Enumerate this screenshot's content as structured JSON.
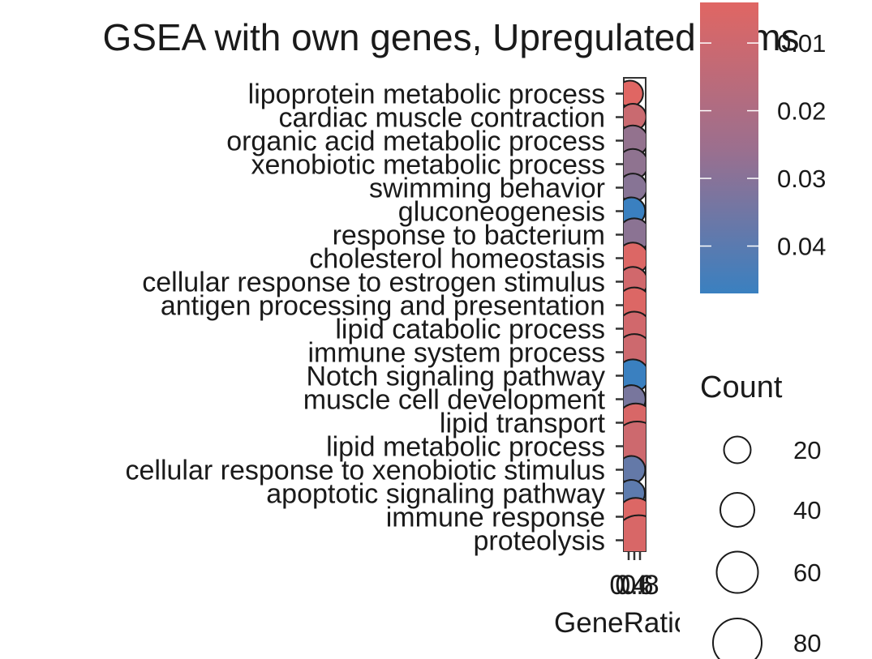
{
  "chart_data": {
    "type": "scatter",
    "title": "GSEA with own genes, Upregulated terms",
    "xlabel": "GeneRatio",
    "ylabel": "",
    "x_tick_labels": [
      "0.4",
      "0.6",
      "0.8"
    ],
    "categories": [
      "lipoprotein metabolic process",
      "cardiac muscle contraction",
      "organic acid metabolic process",
      "xenobiotic metabolic process",
      "swimming behavior",
      "gluconeogenesis",
      "response to bacterium",
      "cholesterol homeostasis",
      "cellular response to estrogen stimulus",
      "antigen processing and presentation",
      "lipid catabolic process",
      "immune system process",
      "Notch signaling pathway",
      "muscle cell development",
      "lipid transport",
      "lipid metabolic process",
      "cellular response to xenobiotic stimulus",
      "apoptotic signaling pathway",
      "immune response",
      "proteolysis"
    ],
    "points": [
      {
        "term": "lipoprotein metabolic process",
        "gene_ratio": 0.45,
        "p_adjust": 0.004,
        "count": 18
      },
      {
        "term": "cardiac muscle contraction",
        "gene_ratio": 0.55,
        "p_adjust": 0.01,
        "count": 20
      },
      {
        "term": "organic acid metabolic process",
        "gene_ratio": 0.55,
        "p_adjust": 0.024,
        "count": 30
      },
      {
        "term": "xenobiotic metabolic process",
        "gene_ratio": 0.55,
        "p_adjust": 0.025,
        "count": 30
      },
      {
        "term": "swimming behavior",
        "gene_ratio": 0.55,
        "p_adjust": 0.027,
        "count": 24
      },
      {
        "term": "gluconeogenesis",
        "gene_ratio": 0.5,
        "p_adjust": 0.047,
        "count": 22
      },
      {
        "term": "response to bacterium",
        "gene_ratio": 0.6,
        "p_adjust": 0.026,
        "count": 36
      },
      {
        "term": "cholesterol homeostasis",
        "gene_ratio": 0.55,
        "p_adjust": 0.005,
        "count": 32
      },
      {
        "term": "cellular response to estrogen stimulus",
        "gene_ratio": 0.55,
        "p_adjust": 0.008,
        "count": 28
      },
      {
        "term": "antigen processing and presentation",
        "gene_ratio": 0.6,
        "p_adjust": 0.005,
        "count": 44
      },
      {
        "term": "lipid catabolic process",
        "gene_ratio": 0.6,
        "p_adjust": 0.008,
        "count": 40
      },
      {
        "term": "immune system process",
        "gene_ratio": 0.6,
        "p_adjust": 0.009,
        "count": 46
      },
      {
        "term": "Notch signaling pathway",
        "gene_ratio": 0.55,
        "p_adjust": 0.047,
        "count": 36
      },
      {
        "term": "muscle cell development",
        "gene_ratio": 0.5,
        "p_adjust": 0.031,
        "count": 24
      },
      {
        "term": "lipid transport",
        "gene_ratio": 0.65,
        "p_adjust": 0.006,
        "count": 52
      },
      {
        "term": "lipid metabolic process",
        "gene_ratio": 0.7,
        "p_adjust": 0.009,
        "count": 82
      },
      {
        "term": "cellular response to xenobiotic stimulus",
        "gene_ratio": 0.5,
        "p_adjust": 0.036,
        "count": 22
      },
      {
        "term": "apoptotic signaling pathway",
        "gene_ratio": 0.5,
        "p_adjust": 0.038,
        "count": 20
      },
      {
        "term": "immune response",
        "gene_ratio": 0.65,
        "p_adjust": 0.005,
        "count": 50
      },
      {
        "term": "proteolysis",
        "gene_ratio": 0.75,
        "p_adjust": 0.006,
        "count": 84
      }
    ],
    "colorbar": {
      "title": "",
      "min": 0.004,
      "max": 0.047,
      "ticks": [
        0.01,
        0.02,
        0.03,
        0.04
      ],
      "tick_labels": [
        "0.01",
        "0.02",
        "0.03",
        "0.04"
      ],
      "low_color": "#e06663",
      "high_color": "#3a80c0"
    },
    "size_legend": {
      "title": "Count",
      "values": [
        20,
        40,
        60,
        80
      ],
      "labels": [
        "20",
        "40",
        "60",
        "80"
      ]
    },
    "grid": false,
    "legend_position": "right"
  }
}
